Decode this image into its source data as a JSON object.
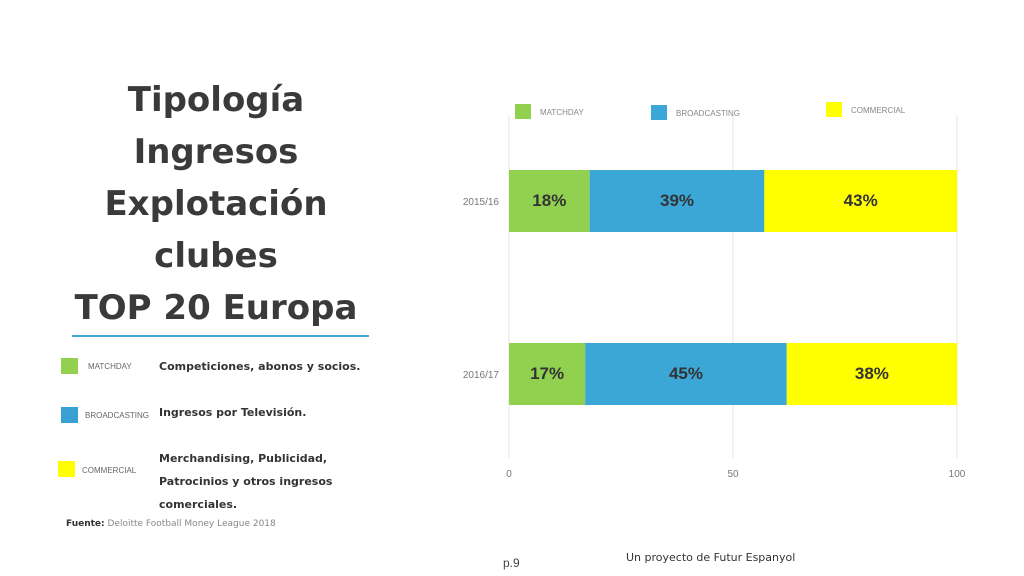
{
  "title_lines": [
    "Tipología",
    "Ingresos",
    "Explotación",
    "clubes",
    "TOP 20 Europa"
  ],
  "legend": [
    {
      "name": "MATCHDAY",
      "color": "#92d050",
      "description": "Competiciones, abonos y socios."
    },
    {
      "name": "BROADCASTING",
      "color": "#3a9fd3",
      "description": "Ingresos por Televisión."
    },
    {
      "name": "COMMERCIAL",
      "color": "#ffff00",
      "description": "Merchandising, Publicidad, Patrocinios y otros ingresos comerciales."
    }
  ],
  "source": {
    "label": "Fuente:",
    "text": "Deloitte Football Money League 2018"
  },
  "page_number": "p.9",
  "footer": "Un proyecto de Futur Espanyol",
  "chart_data": {
    "type": "bar",
    "orientation": "horizontal",
    "stacked": true,
    "categories": [
      "2015/16",
      "2016/17"
    ],
    "series": [
      {
        "name": "MATCHDAY",
        "color": "#92d050",
        "values": [
          18,
          17
        ],
        "labels": [
          "18%",
          "17%"
        ]
      },
      {
        "name": "BROADCASTING",
        "color": "#3ba7d6",
        "values": [
          39,
          45
        ],
        "labels": [
          "39%",
          "45%"
        ]
      },
      {
        "name": "COMMERCIAL",
        "color": "#ffff00",
        "values": [
          43,
          38
        ],
        "labels": [
          "43%",
          "38%"
        ]
      }
    ],
    "xlim": [
      0,
      100
    ],
    "xticks": [
      "0",
      "50",
      "100"
    ],
    "grid": true,
    "legend_position": "top"
  }
}
